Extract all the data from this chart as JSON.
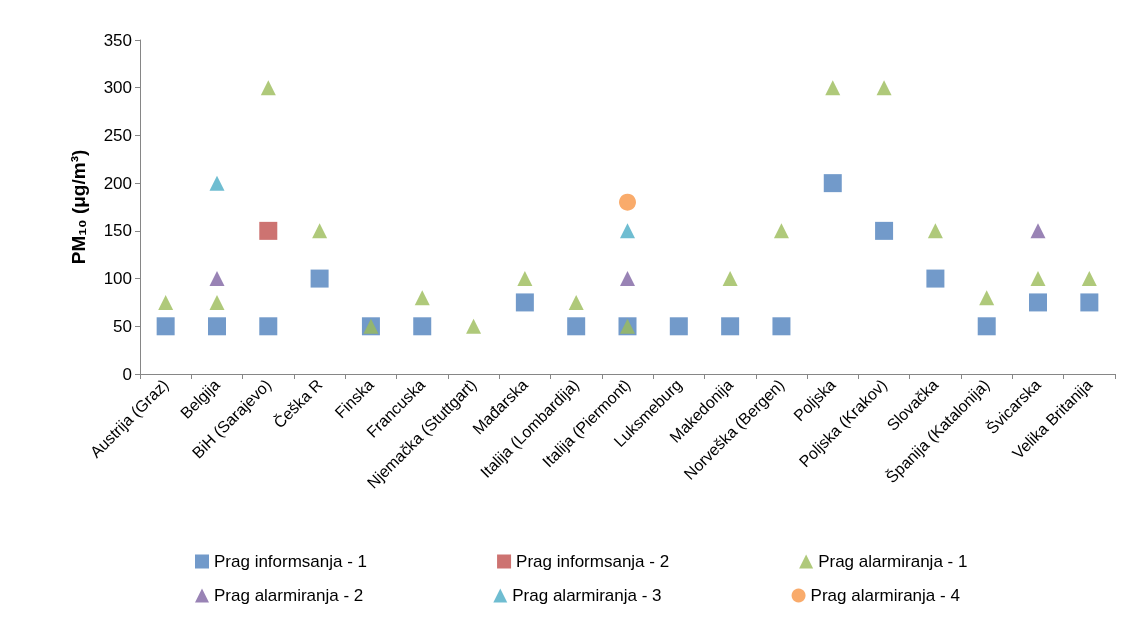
{
  "chart_data": {
    "type": "scatter",
    "ylabel": "PM₁₀ (μg/m³)",
    "categories": [
      "Austrija (Graz)",
      "Belgija",
      "BiH (Sarajevo)",
      "Češka R",
      "Finska",
      "Francuska",
      "Njemačka (Stuttgart)",
      "Mađarska",
      "Italija (Lombardija)",
      "Italija (Piermont)",
      "Luksmeburg",
      "Makedonija",
      "Norveška (Bergen)",
      "Poljska",
      "Poljska (Krakov)",
      "Slovačka",
      "Španija (Katalonija)",
      "Švicarska",
      "Velika Britanija"
    ],
    "series": [
      {
        "name": "Prag informsanja - 1",
        "color": "#4f81bd",
        "marker": "square",
        "values": [
          50,
          50,
          50,
          100,
          50,
          50,
          null,
          75,
          50,
          50,
          50,
          50,
          50,
          200,
          150,
          100,
          50,
          75,
          75
        ]
      },
      {
        "name": "Prag informsanja - 2",
        "color": "#c0504d",
        "marker": "square",
        "values": [
          null,
          null,
          150,
          null,
          null,
          null,
          null,
          null,
          null,
          null,
          null,
          null,
          null,
          null,
          null,
          null,
          null,
          null,
          null
        ]
      },
      {
        "name": "Prag alarmiranja - 1",
        "color": "#9bbb59",
        "marker": "triangle",
        "values": [
          75,
          75,
          300,
          150,
          50,
          80,
          50,
          100,
          75,
          50,
          null,
          100,
          150,
          300,
          300,
          150,
          80,
          100,
          100
        ]
      },
      {
        "name": "Prag alarmiranja - 2",
        "color": "#8064a2",
        "marker": "triangle",
        "values": [
          null,
          100,
          null,
          null,
          null,
          null,
          null,
          null,
          null,
          100,
          null,
          null,
          null,
          null,
          null,
          null,
          null,
          150,
          null
        ]
      },
      {
        "name": "Prag alarmiranja - 3",
        "color": "#4bacc6",
        "marker": "triangle",
        "values": [
          null,
          200,
          null,
          null,
          null,
          null,
          null,
          null,
          null,
          150,
          null,
          null,
          null,
          null,
          null,
          null,
          null,
          null,
          null
        ]
      },
      {
        "name": "Prag alarmiranja - 4",
        "color": "#f79646",
        "marker": "circle",
        "values": [
          null,
          null,
          null,
          null,
          null,
          null,
          null,
          null,
          null,
          180,
          null,
          null,
          null,
          null,
          null,
          null,
          null,
          null,
          null
        ]
      }
    ],
    "ylim": [
      0,
      350
    ],
    "yticks": [
      0,
      50,
      100,
      150,
      200,
      250,
      300,
      350
    ],
    "grid": false,
    "legend": "bottom"
  }
}
